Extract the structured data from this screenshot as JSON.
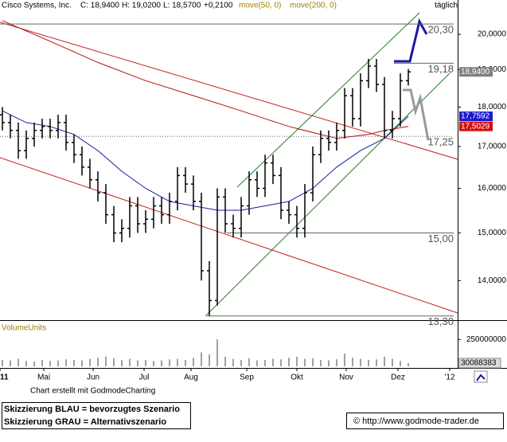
{
  "header": {
    "symbol": "Cisco Systems, Inc.",
    "close": "C: 18,9400",
    "high": "H: 19,0200",
    "low": "L: 18,5700",
    "change": "+0,2100",
    "interval": "täglich"
  },
  "chart_data": {
    "type": "ohlc",
    "xlim": [
      -0.3,
      57.2
    ],
    "xticks": [
      {
        "value": -0.3,
        "label": "11"
      },
      {
        "value": 5.2,
        "label": "Mai"
      },
      {
        "value": 11.4,
        "label": "Jun"
      },
      {
        "value": 17.8,
        "label": "Jul"
      },
      {
        "value": 23.7,
        "label": "Aug"
      },
      {
        "value": 30.7,
        "label": "Sep"
      },
      {
        "value": 37,
        "label": "Okt"
      },
      {
        "value": 43.2,
        "label": "Nov"
      },
      {
        "value": 49.7,
        "label": "Dez"
      },
      {
        "value": 56.2,
        "label": "'12"
      }
    ],
    "ylim": [
      13.25,
      20.97
    ],
    "log_scale": true,
    "yticks": [
      {
        "value": 14,
        "label": "14,0000"
      },
      {
        "value": 15,
        "label": "15,0000"
      },
      {
        "value": 16,
        "label": "16,0000"
      },
      {
        "value": 17,
        "label": "17,0000"
      },
      {
        "value": 18,
        "label": "18,0000"
      },
      {
        "value": 19,
        "label": "19,0000"
      },
      {
        "value": 20,
        "label": "20,0000"
      }
    ],
    "color": "#000000",
    "candles": {
      "open": [
        17.8,
        17.6,
        17.4,
        16.9,
        17.2,
        17.4,
        17.5,
        17.4,
        17.6,
        17.1,
        16.8,
        16.5,
        16.2,
        15.9,
        15.4,
        15.0,
        15.1,
        15.6,
        15.2,
        15.3,
        15.6,
        15.4,
        15.7,
        16.3,
        16.1,
        15.7,
        14.2,
        13.6,
        15.8,
        15.2,
        15.1,
        15.6,
        16.2,
        16.0,
        16.6,
        16.3,
        15.5,
        15.4,
        15.1,
        15.9,
        16.8,
        17.2,
        17.1,
        17.4,
        18.3,
        17.7,
        18.7,
        19.1,
        18.6,
        17.4,
        17.7,
        18.7
      ],
      "high": [
        18.0,
        17.8,
        17.6,
        17.4,
        17.6,
        17.7,
        17.7,
        17.8,
        17.8,
        17.3,
        17.0,
        16.7,
        16.4,
        16.1,
        15.6,
        15.3,
        15.8,
        15.8,
        15.5,
        15.8,
        15.8,
        15.9,
        16.5,
        16.5,
        16.3,
        15.9,
        14.4,
        16.0,
        16.0,
        15.4,
        15.8,
        16.4,
        16.4,
        16.8,
        16.8,
        16.5,
        15.7,
        15.6,
        16.1,
        17.0,
        17.4,
        17.4,
        17.6,
        18.5,
        18.5,
        18.9,
        19.3,
        19.3,
        18.8,
        17.9,
        18.9,
        19.02
      ],
      "low": [
        17.4,
        17.2,
        16.7,
        16.7,
        17.0,
        17.2,
        17.2,
        17.2,
        16.9,
        16.6,
        16.3,
        16.0,
        15.7,
        15.2,
        14.8,
        14.8,
        14.9,
        15.0,
        15.0,
        15.1,
        15.2,
        15.2,
        15.5,
        15.9,
        15.5,
        14.0,
        13.3,
        13.5,
        15.0,
        14.9,
        14.9,
        15.4,
        15.8,
        15.8,
        16.1,
        15.3,
        15.2,
        14.9,
        14.9,
        15.7,
        16.6,
        16.9,
        16.9,
        17.2,
        17.5,
        17.5,
        18.5,
        18.4,
        17.2,
        17.2,
        17.5,
        18.57
      ],
      "close": [
        17.6,
        17.4,
        16.9,
        17.2,
        17.4,
        17.5,
        17.4,
        17.6,
        17.1,
        16.8,
        16.5,
        16.2,
        15.9,
        15.4,
        15.0,
        15.1,
        15.6,
        15.2,
        15.3,
        15.6,
        15.4,
        15.7,
        16.3,
        16.1,
        15.7,
        14.2,
        13.6,
        15.8,
        15.2,
        15.1,
        15.6,
        16.2,
        16.0,
        16.6,
        16.3,
        15.5,
        15.4,
        15.1,
        15.9,
        16.8,
        17.2,
        17.1,
        17.4,
        18.3,
        17.7,
        18.7,
        19.1,
        18.6,
        17.4,
        17.7,
        18.7,
        18.94
      ]
    },
    "series": [
      {
        "name": "move(50, 0)",
        "color": "#1a1aa0",
        "x": [
          0,
          3,
          6,
          9,
          12,
          15,
          18,
          21,
          24,
          27,
          30,
          33,
          36,
          39,
          42,
          45,
          48,
          51
        ],
        "values": [
          17.9,
          17.6,
          17.5,
          17.3,
          16.9,
          16.4,
          16.0,
          15.7,
          15.6,
          15.5,
          15.5,
          15.6,
          15.7,
          16.0,
          16.5,
          16.9,
          17.2,
          17.7592
        ]
      },
      {
        "name": "move(200, 0)",
        "color": "#b01010",
        "x": [
          0,
          6,
          12,
          18,
          24,
          30,
          36,
          42,
          46,
          48,
          51
        ],
        "values": [
          20.4,
          19.8,
          19.2,
          18.7,
          18.3,
          17.9,
          17.5,
          17.2,
          17.3,
          17.4,
          17.5029
        ]
      }
    ],
    "levels": [
      {
        "value": 20.3,
        "label": "20,30"
      },
      {
        "value": 19.18,
        "label": "19,18"
      },
      {
        "value": 17.25,
        "label": "17,25"
      },
      {
        "value": 15,
        "label": "15,00"
      },
      {
        "value": 13.3,
        "label": "13,30"
      }
    ],
    "price_tags": [
      {
        "value": 18.94,
        "label": "18,9400",
        "color": "#808080"
      },
      {
        "value": 17.7592,
        "label": "17,7592",
        "color": "#1a1ad0"
      },
      {
        "value": 17.5029,
        "label": "17,5029",
        "color": "#d01010"
      }
    ],
    "volume": {
      "title": "VolumeUnits",
      "color": "#a0a0a0",
      "ylim": [
        0,
        407000000
      ],
      "yticks": [
        250000000
      ],
      "values": [
        60000000,
        55000000,
        70000000,
        50000000,
        45000000,
        60000000,
        50000000,
        55000000,
        65000000,
        60000000,
        55000000,
        70000000,
        80000000,
        90000000,
        75000000,
        60000000,
        70000000,
        55000000,
        60000000,
        50000000,
        55000000,
        65000000,
        70000000,
        60000000,
        80000000,
        130000000,
        110000000,
        250000000,
        90000000,
        70000000,
        60000000,
        75000000,
        55000000,
        60000000,
        70000000,
        65000000,
        80000000,
        90000000,
        70000000,
        75000000,
        60000000,
        55000000,
        65000000,
        120000000,
        80000000,
        70000000,
        60000000,
        65000000,
        90000000,
        70000000,
        50000000,
        30088383
      ]
    }
  },
  "footer": {
    "credit": "Chart erstellt mit GodmodeCharting",
    "legend_blue": "Skizzierung BLAU = bevorzugtes Szenario",
    "legend_gray": "Skizzierung GRAU = Alternativszenario",
    "copyright": "© http://www.godmode-trader.de"
  }
}
